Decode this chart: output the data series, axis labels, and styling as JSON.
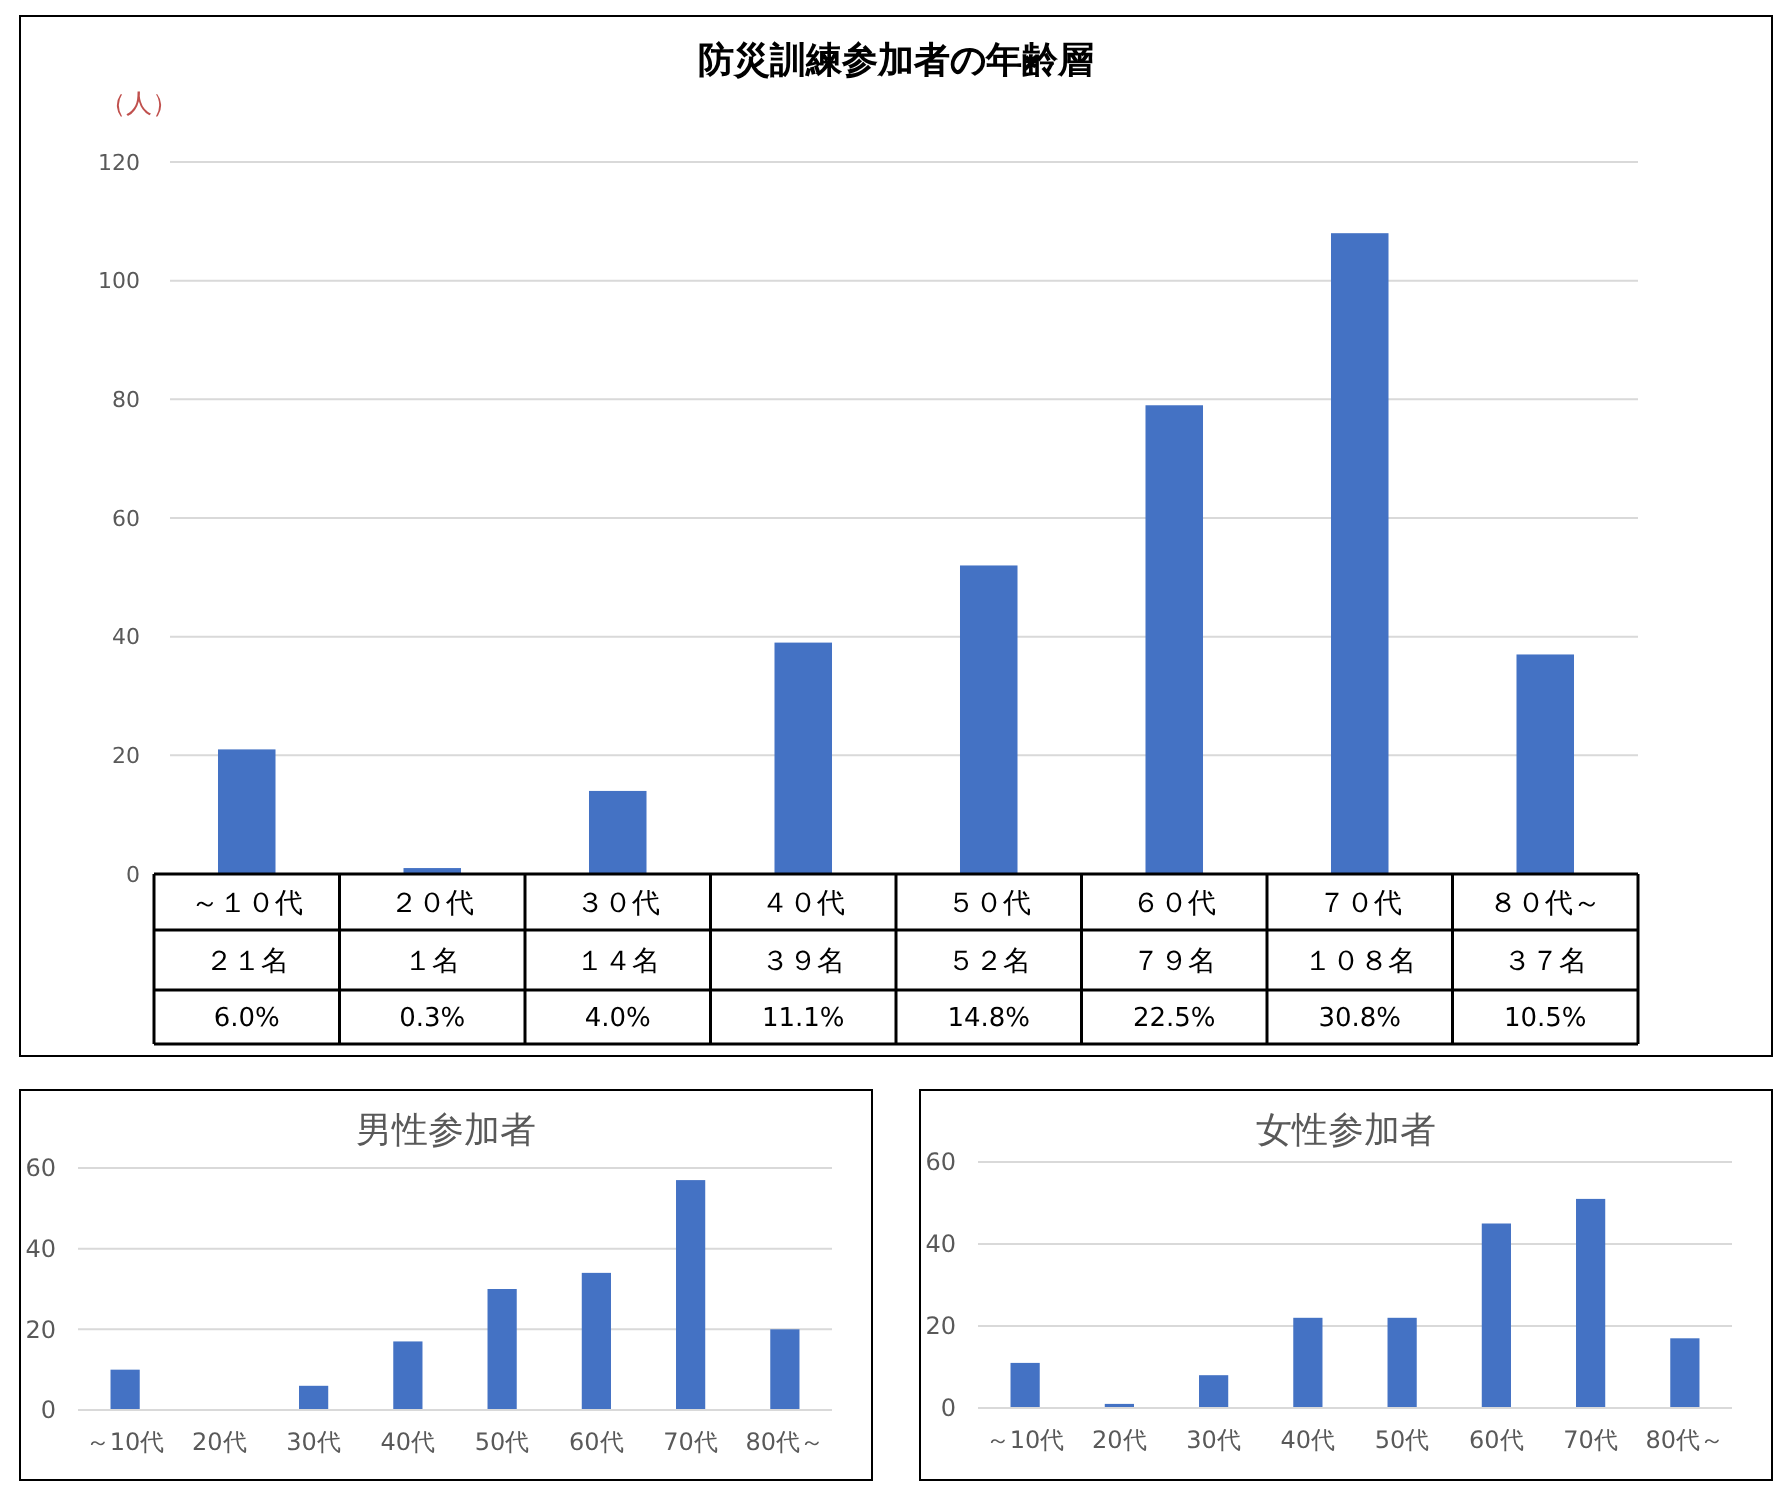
{
  "chart_data": [
    {
      "type": "bar",
      "title": "防災訓練参加者の年齢層",
      "ylabel": "（人）",
      "categories": [
        "～１０代",
        "２０代",
        "３０代",
        "４０代",
        "５０代",
        "６０代",
        "７０代",
        "８０代～"
      ],
      "values": [
        21,
        1,
        14,
        39,
        52,
        79,
        108,
        37
      ],
      "color": "#4472c4",
      "ylim": [
        0,
        120
      ],
      "yticks": [
        0,
        20,
        40,
        60,
        80,
        100,
        120
      ],
      "grid": "y",
      "value_labels": [
        "２１名",
        "１名",
        "１４名",
        "３９名",
        "５２名",
        "７９名",
        "１０８名",
        "３７名"
      ],
      "annotations": [
        "6.0%",
        "0.3%",
        "4.0%",
        "11.1%",
        "14.8%",
        "22.5%",
        "30.8%",
        "10.5%"
      ]
    },
    {
      "type": "bar",
      "title": "男性参加者",
      "categories": [
        "～10代",
        "20代",
        "30代",
        "40代",
        "50代",
        "60代",
        "70代",
        "80代～"
      ],
      "values": [
        10,
        0,
        6,
        17,
        30,
        34,
        57,
        20
      ],
      "color": "#4472c4",
      "ylim": [
        0,
        60
      ],
      "yticks": [
        0,
        20,
        40,
        60
      ],
      "grid": "y"
    },
    {
      "type": "bar",
      "title": "女性参加者",
      "categories": [
        "～10代",
        "20代",
        "30代",
        "40代",
        "50代",
        "60代",
        "70代",
        "80代～"
      ],
      "values": [
        11,
        1,
        8,
        22,
        22,
        45,
        51,
        17
      ],
      "color": "#4472c4",
      "ylim": [
        0,
        60
      ],
      "yticks": [
        0,
        20,
        40,
        60
      ],
      "grid": "y"
    }
  ]
}
